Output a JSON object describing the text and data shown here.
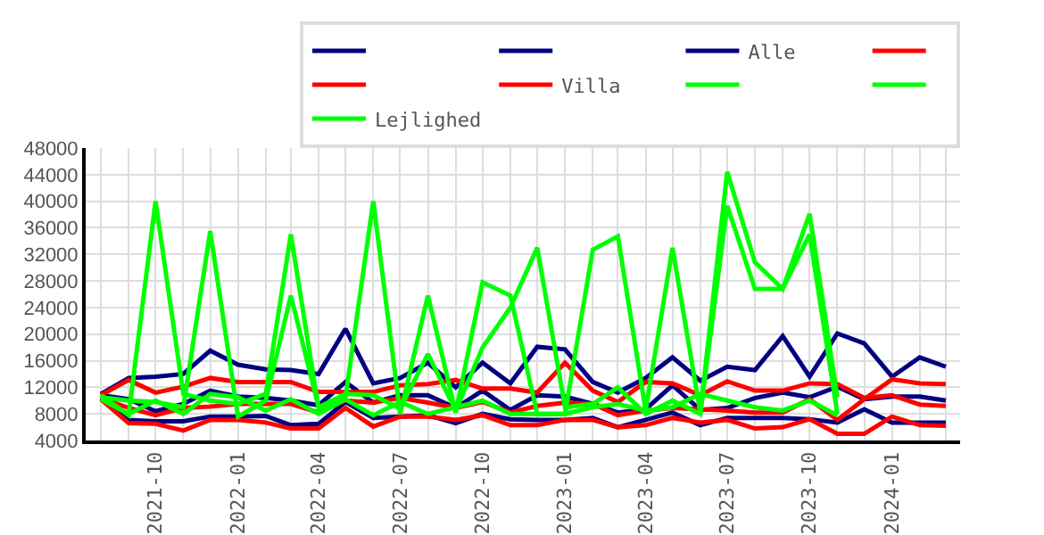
{
  "chart_data": {
    "type": "line",
    "x": [
      "2021-08",
      "2021-09",
      "2021-10",
      "2021-11",
      "2021-12",
      "2022-01",
      "2022-02",
      "2022-03",
      "2022-04",
      "2022-05",
      "2022-06",
      "2022-07",
      "2022-08",
      "2022-09",
      "2022-10",
      "2022-11",
      "2022-12",
      "2023-01",
      "2023-02",
      "2023-03",
      "2023-04",
      "2023-05",
      "2023-06",
      "2023-07",
      "2023-08",
      "2023-09",
      "2023-10",
      "2023-11",
      "2023-12",
      "2024-01",
      "2024-02",
      "2024-03"
    ],
    "series": [
      {
        "color": "#000080",
        "values": [
          11000,
          13400,
          13600,
          14000,
          17500,
          15400,
          14700,
          14600,
          14000,
          20800,
          12600,
          13400,
          15700,
          12000,
          15700,
          12600,
          18100,
          17700,
          12800,
          11200,
          13400,
          16500,
          13000,
          15100,
          14600,
          19700,
          13600,
          20100,
          18600,
          13600,
          16500,
          15100
        ]
      },
      {
        "color": "#000080",
        "values": [
          10800,
          10200,
          8400,
          9500,
          11500,
          10600,
          10400,
          10000,
          9300,
          12800,
          9700,
          10800,
          10800,
          8900,
          11500,
          8600,
          10800,
          10600,
          9500,
          8200,
          8700,
          12300,
          8600,
          8900,
          10400,
          11200,
          10500,
          12100,
          10200,
          10600,
          10600,
          10000
        ]
      },
      {
        "name": "Alle",
        "color": "#000080",
        "values": [
          10400,
          7100,
          6900,
          6900,
          7600,
          7600,
          7700,
          6300,
          6500,
          9800,
          7400,
          7600,
          7800,
          6600,
          8000,
          7200,
          7100,
          7100,
          7400,
          6000,
          7100,
          8200,
          6300,
          7400,
          7400,
          7400,
          7200,
          6700,
          8700,
          6700,
          6700,
          6700
        ]
      },
      {
        "color": "#ff0000",
        "values": [
          10800,
          13100,
          11200,
          12100,
          13400,
          12800,
          12800,
          12800,
          11300,
          11300,
          11300,
          12300,
          12500,
          13100,
          11800,
          11800,
          11200,
          15700,
          11500,
          9800,
          12800,
          12600,
          10800,
          12900,
          11500,
          11500,
          12600,
          12500,
          10400,
          10800,
          9400,
          9200
        ]
      },
      {
        "color": "#ff0000",
        "values": [
          10400,
          8900,
          7800,
          8900,
          9100,
          9500,
          9500,
          9500,
          8200,
          10000,
          9700,
          10400,
          9700,
          8900,
          9800,
          8200,
          9200,
          9700,
          9500,
          7800,
          8500,
          8900,
          8700,
          8500,
          8200,
          8200,
          10200,
          7100,
          10200,
          13200,
          12600,
          12500
        ]
      },
      {
        "name": "Villa",
        "color": "#ff0000",
        "values": [
          10200,
          6600,
          6500,
          5500,
          7100,
          7100,
          6700,
          5800,
          5800,
          8900,
          6100,
          7600,
          7600,
          7100,
          7800,
          6300,
          6300,
          7100,
          7100,
          6000,
          6300,
          7400,
          6700,
          7100,
          5800,
          6000,
          7200,
          5000,
          5000,
          7600,
          6300,
          6200
        ]
      },
      {
        "color": "#00ff00",
        "values": [
          10800,
          7800,
          40000,
          11000,
          10000,
          9500,
          11000,
          35000,
          8800,
          10500,
          40000,
          8000,
          25800,
          8200,
          27800,
          25800,
          8000,
          8000,
          32700,
          34700,
          8500,
          33000,
          8200,
          44400,
          30800,
          26800,
          38100,
          10500,
          null,
          null,
          null,
          null
        ]
      },
      {
        "color": "#00ff00",
        "values": [
          10500,
          10000,
          9800,
          9000,
          35500,
          7600,
          10000,
          25800,
          9000,
          11000,
          10800,
          8800,
          17000,
          8500,
          18000,
          24000,
          33000,
          9000,
          9500,
          12000,
          8000,
          10000,
          8000,
          39300,
          26800,
          26800,
          35000,
          8000,
          null,
          null,
          null,
          null
        ]
      },
      {
        "name": "Lejlighed",
        "color": "#00ff00",
        "values": [
          10200,
          8000,
          10000,
          8000,
          11000,
          10500,
          8500,
          10200,
          8000,
          10200,
          7800,
          9800,
          8000,
          9000,
          10000,
          8000,
          8000,
          8000,
          9000,
          9500,
          8500,
          9000,
          11000,
          10000,
          9000,
          8500,
          10000,
          7800,
          null,
          null,
          null,
          null
        ]
      }
    ],
    "xlim": [
      "2021-07-15",
      "2024-03-17"
    ],
    "xticks": [
      {
        "value": "2021-08",
        "label": null
      },
      {
        "value": "2021-09",
        "label": null
      },
      {
        "value": "2021-10",
        "label": "2021-10"
      },
      {
        "value": "2021-11",
        "label": null
      },
      {
        "value": "2021-12",
        "label": null
      },
      {
        "value": "2022-01",
        "label": "2022-01"
      },
      {
        "value": "2022-02",
        "label": null
      },
      {
        "value": "2022-03",
        "label": null
      },
      {
        "value": "2022-04",
        "label": "2022-04"
      },
      {
        "value": "2022-05",
        "label": null
      },
      {
        "value": "2022-06",
        "label": null
      },
      {
        "value": "2022-07",
        "label": "2022-07"
      },
      {
        "value": "2022-08",
        "label": null
      },
      {
        "value": "2022-09",
        "label": null
      },
      {
        "value": "2022-10",
        "label": "2022-10"
      },
      {
        "value": "2022-11",
        "label": null
      },
      {
        "value": "2022-12",
        "label": null
      },
      {
        "value": "2023-01",
        "label": "2023-01"
      },
      {
        "value": "2023-02",
        "label": null
      },
      {
        "value": "2023-03",
        "label": null
      },
      {
        "value": "2023-04",
        "label": "2023-04"
      },
      {
        "value": "2023-05",
        "label": null
      },
      {
        "value": "2023-06",
        "label": null
      },
      {
        "value": "2023-07",
        "label": "2023-07"
      },
      {
        "value": "2023-08",
        "label": null
      },
      {
        "value": "2023-09",
        "label": null
      },
      {
        "value": "2023-10",
        "label": "2023-10"
      },
      {
        "value": "2023-11",
        "label": null
      },
      {
        "value": "2023-12",
        "label": null
      },
      {
        "value": "2024-01",
        "label": "2024-01"
      },
      {
        "value": "2024-02",
        "label": null
      },
      {
        "value": "2024-03",
        "label": null
      }
    ],
    "ylim": [
      4000,
      48000
    ],
    "yticks": [
      4000,
      8000,
      12000,
      16000,
      20000,
      24000,
      28000,
      32000,
      36000,
      40000,
      44000,
      48000
    ],
    "grid": true,
    "legend": "top right",
    "marker": "none",
    "line_style": "solid"
  }
}
